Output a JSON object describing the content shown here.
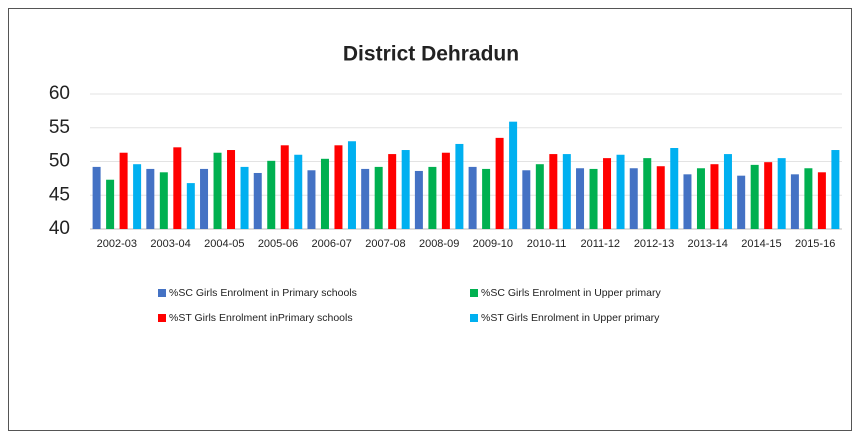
{
  "chart_data": {
    "type": "bar",
    "title": "District Dehradun",
    "categories": [
      "2002-03",
      "2003-04",
      "2004-05",
      "2005-06",
      "2006-07",
      "2007-08",
      "2008-09",
      "2009-10",
      "2010-11",
      "2011-12",
      "2012-13",
      "2013-14",
      "2014-15",
      "2015-16"
    ],
    "series": [
      {
        "name": "%SC Girls Enrolment in Primary schools",
        "color": "#4472c4",
        "values": [
          49.2,
          48.9,
          48.9,
          48.3,
          48.7,
          48.9,
          48.6,
          49.2,
          48.7,
          49.0,
          49.0,
          48.1,
          47.9,
          48.1
        ]
      },
      {
        "name": "%SC Girls Enrolment in Upper primary",
        "color": "#00b050",
        "values": [
          47.3,
          48.4,
          51.3,
          50.1,
          50.4,
          49.2,
          49.2,
          48.9,
          49.6,
          48.9,
          50.5,
          49.0,
          49.5,
          49.0
        ]
      },
      {
        "name": "%ST Girls Enrolment inPrimary schools",
        "color": "#ff0000",
        "values": [
          51.3,
          52.1,
          51.7,
          52.4,
          52.4,
          51.1,
          51.3,
          53.5,
          51.1,
          50.5,
          49.3,
          49.6,
          49.9,
          48.4
        ]
      },
      {
        "name": "%ST Girls Enrolment in Upper primary",
        "color": "#00b0f0",
        "values": [
          49.6,
          46.8,
          49.2,
          51.0,
          53.0,
          51.7,
          52.6,
          55.9,
          51.1,
          51.0,
          52.0,
          51.1,
          50.5,
          51.7
        ]
      }
    ],
    "ylim": [
      40,
      60
    ],
    "yticks": [
      40,
      45,
      50,
      55,
      60
    ],
    "grid": true,
    "legend": "bottom"
  }
}
